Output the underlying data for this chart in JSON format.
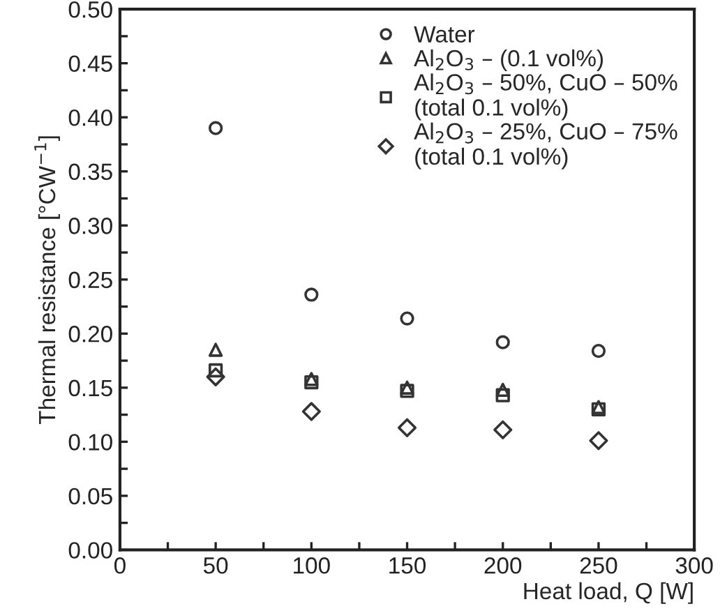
{
  "chart_data": {
    "type": "scatter",
    "xlabel": "Heat load, Q [W]",
    "ylabel": "Thermal resistance [°CW$^{−1}$]",
    "x": [
      50,
      100,
      150,
      200,
      250
    ],
    "series": [
      {
        "name": "Water",
        "color": "#333333",
        "marker": "circle",
        "values": [
          0.39,
          0.236,
          0.214,
          0.192,
          0.184
        ]
      },
      {
        "name": "Al$_{2}$O$_{3}$ – (0.1 vol%)",
        "color": "#333333",
        "marker": "triangle",
        "values": [
          0.185,
          0.158,
          0.15,
          0.148,
          0.132
        ]
      },
      {
        "name": "Al$_{2}$O$_{3}$ – 50%, CuO – 50%\n(total 0.1 vol%)",
        "color": "#333333",
        "marker": "square",
        "values": [
          0.166,
          0.155,
          0.147,
          0.143,
          0.13
        ]
      },
      {
        "name": "Al$_{2}$O$_{3}$ – 25%, CuO – 75%\n(total 0.1 vol%)",
        "color": "#333333",
        "marker": "diamond",
        "values": [
          0.16,
          0.128,
          0.113,
          0.111,
          0.101
        ]
      }
    ],
    "xlim": [
      0,
      300
    ],
    "xticks": [
      0,
      {
        "value": 25,
        "label": null
      },
      50,
      {
        "value": 75,
        "label": null
      },
      100,
      {
        "value": 125,
        "label": null
      },
      150,
      {
        "value": 175,
        "label": null
      },
      200,
      {
        "value": 225,
        "label": null
      },
      250,
      {
        "value": 275,
        "label": null
      },
      300
    ],
    "ylim": [
      0,
      0.5
    ],
    "yticks": [
      {
        "value": 0,
        "label": "0.00"
      },
      {
        "value": 0.025,
        "label": null
      },
      {
        "value": 0.05,
        "label": "0.05"
      },
      {
        "value": 0.075,
        "label": null
      },
      {
        "value": 0.1,
        "label": "0.10"
      },
      {
        "value": 0.125,
        "label": null
      },
      {
        "value": 0.15,
        "label": "0.15"
      },
      {
        "value": 0.175,
        "label": null
      },
      {
        "value": 0.2,
        "label": "0.20"
      },
      {
        "value": 0.225,
        "label": null
      },
      {
        "value": 0.25,
        "label": "0.25"
      },
      {
        "value": 0.275,
        "label": null
      },
      {
        "value": 0.3,
        "label": "0.30"
      },
      {
        "value": 0.325,
        "label": null
      },
      {
        "value": 0.35,
        "label": "0.35"
      },
      {
        "value": 0.375,
        "label": null
      },
      {
        "value": 0.4,
        "label": "0.40"
      },
      {
        "value": 0.425,
        "label": null
      },
      {
        "value": 0.45,
        "label": "0.45"
      },
      {
        "value": 0.475,
        "label": null
      },
      {
        "value": 0.5,
        "label": "0.50"
      }
    ],
    "grid": false,
    "legend": "top right"
  }
}
